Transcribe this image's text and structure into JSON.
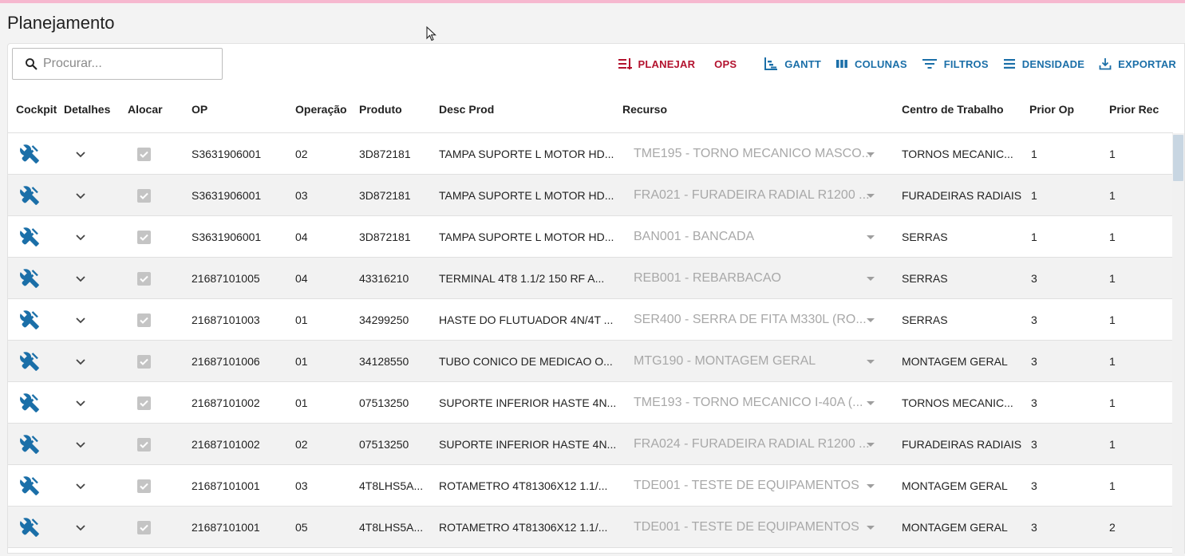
{
  "page": {
    "title": "Planejamento"
  },
  "search": {
    "placeholder": "Procurar..."
  },
  "toolbar": {
    "planejar": "PLANEJAR",
    "ops": "OPS",
    "gantt": "GANTT",
    "colunas": "COLUNAS",
    "filtros": "FILTROS",
    "densidade": "DENSIDADE",
    "exportar": "EXPORTAR"
  },
  "columns": {
    "cockpit": "Cockpit",
    "detalhes": "Detalhes",
    "alocar": "Alocar",
    "op": "OP",
    "operacao": "Operação",
    "produto": "Produto",
    "desc_prod": "Desc Prod",
    "recurso": "Recurso",
    "centro": "Centro de Trabalho",
    "prior_op": "Prior Op",
    "prior_rec": "Prior Rec"
  },
  "colors": {
    "accent_red": "#b3122e",
    "accent_blue": "#1b6fa8",
    "cockpit_icon": "#1b6fa8"
  },
  "rows": [
    {
      "op": "S3631906001",
      "operacao": "02",
      "produto": "3D872181",
      "desc": "TAMPA SUPORTE L MOTOR HD...",
      "recurso": "TME195 - TORNO MECANICO MASCO...",
      "centro": "TORNOS MECANIC...",
      "prior_op": "1",
      "prior_rec": "1",
      "alocar": true
    },
    {
      "op": "S3631906001",
      "operacao": "03",
      "produto": "3D872181",
      "desc": "TAMPA SUPORTE L MOTOR HD...",
      "recurso": "FRA021 - FURADEIRA RADIAL R1200 ...",
      "centro": "FURADEIRAS RADIAIS",
      "prior_op": "1",
      "prior_rec": "1",
      "alocar": true
    },
    {
      "op": "S3631906001",
      "operacao": "04",
      "produto": "3D872181",
      "desc": "TAMPA SUPORTE L MOTOR HD...",
      "recurso": "BAN001 - BANCADA",
      "centro": "SERRAS",
      "prior_op": "1",
      "prior_rec": "1",
      "alocar": true
    },
    {
      "op": "21687101005",
      "operacao": "04",
      "produto": "43316210",
      "desc": "TERMINAL 4T8 1.1/2 150 RF A...",
      "recurso": "REB001 - REBARBACAO",
      "centro": "SERRAS",
      "prior_op": "3",
      "prior_rec": "1",
      "alocar": true
    },
    {
      "op": "21687101003",
      "operacao": "01",
      "produto": "34299250",
      "desc": "HASTE DO FLUTUADOR 4N/4T ...",
      "recurso": "SER400 - SERRA DE FITA M330L (RO...",
      "centro": "SERRAS",
      "prior_op": "3",
      "prior_rec": "1",
      "alocar": true
    },
    {
      "op": "21687101006",
      "operacao": "01",
      "produto": "34128550",
      "desc": "TUBO CONICO DE MEDICAO O...",
      "recurso": "MTG190 - MONTAGEM GERAL",
      "centro": "MONTAGEM GERAL",
      "prior_op": "3",
      "prior_rec": "1",
      "alocar": true
    },
    {
      "op": "21687101002",
      "operacao": "01",
      "produto": "07513250",
      "desc": "SUPORTE INFERIOR HASTE 4N...",
      "recurso": "TME193 - TORNO MECANICO I-40A (...",
      "centro": "TORNOS MECANIC...",
      "prior_op": "3",
      "prior_rec": "1",
      "alocar": true
    },
    {
      "op": "21687101002",
      "operacao": "02",
      "produto": "07513250",
      "desc": "SUPORTE INFERIOR HASTE 4N...",
      "recurso": "FRA024 - FURADEIRA RADIAL R1200 ...",
      "centro": "FURADEIRAS RADIAIS",
      "prior_op": "3",
      "prior_rec": "1",
      "alocar": true
    },
    {
      "op": "21687101001",
      "operacao": "03",
      "produto": "4T8LHS5A...",
      "desc": "ROTAMETRO 4T81306X12 1.1/...",
      "recurso": "TDE001 - TESTE DE EQUIPAMENTOS",
      "centro": "MONTAGEM GERAL",
      "prior_op": "3",
      "prior_rec": "1",
      "alocar": true
    },
    {
      "op": "21687101001",
      "operacao": "05",
      "produto": "4T8LHS5A...",
      "desc": "ROTAMETRO 4T81306X12 1.1/...",
      "recurso": "TDE001 - TESTE DE EQUIPAMENTOS",
      "centro": "MONTAGEM GERAL",
      "prior_op": "3",
      "prior_rec": "2",
      "alocar": true
    }
  ]
}
